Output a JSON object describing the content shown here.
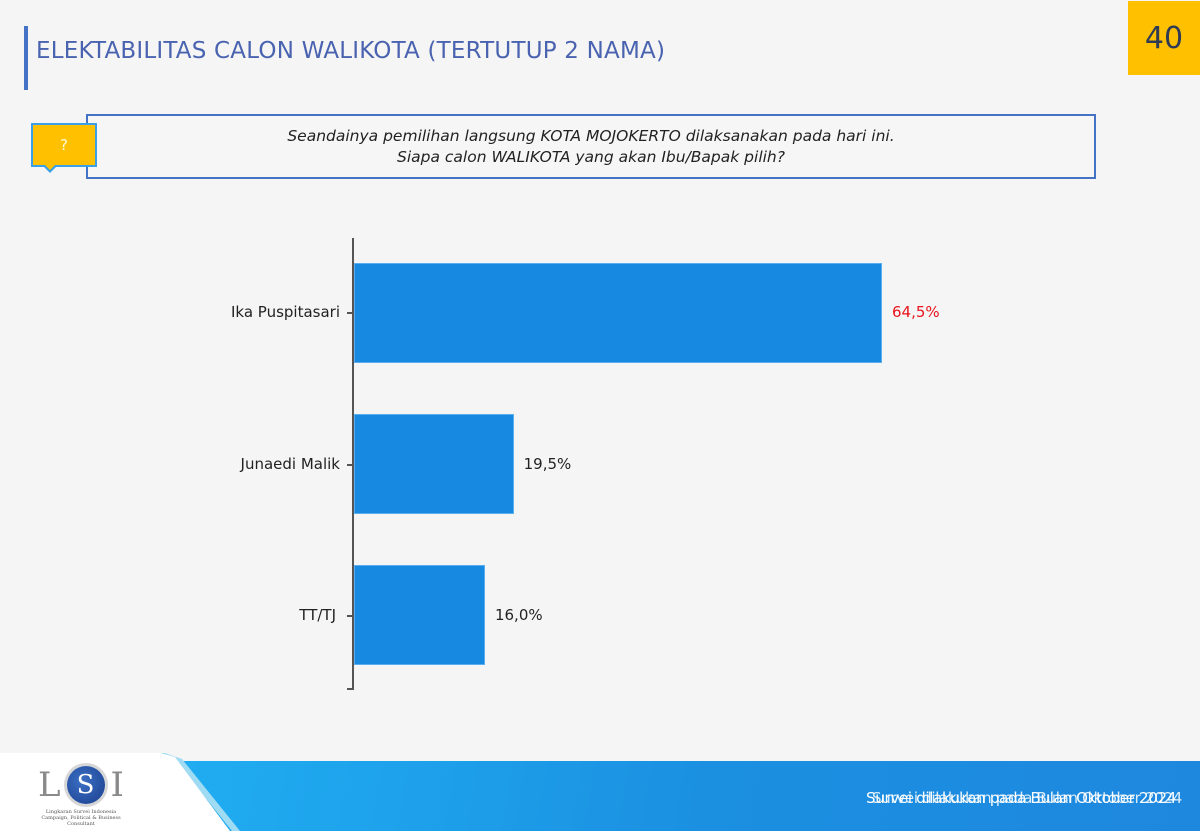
{
  "header": {
    "title": "ELEKTABILITAS CALON WALIKOTA (TERTUTUP 2 NAMA)",
    "page_number": "40"
  },
  "question": {
    "tag_symbol": "?",
    "line1": "Seandainya pemilihan langsung KOTA MOJOKERTO dilaksanakan pada hari ini.",
    "line2": "Siapa calon WALIKOTA yang akan Ibu/Bapak pilih?"
  },
  "colors": {
    "bar": "#1789e0",
    "highlight_value": "#e8141c",
    "accent_yellow": "#ffc000",
    "accent_blue": "#4472c4"
  },
  "chart_data": {
    "type": "bar",
    "orientation": "horizontal",
    "title": "ELEKTABILITAS CALON WALIKOTA (TERTUTUP 2 NAMA)",
    "xlabel": "",
    "ylabel": "",
    "categories": [
      "Ika Puspitasari",
      "Junaedi Malik",
      "TT/TJ"
    ],
    "values": [
      64.5,
      19.5,
      16.0
    ],
    "value_labels": [
      "64,5%",
      "19,5%",
      "16,0%"
    ],
    "unit": "%",
    "xlim": [
      0,
      100
    ],
    "grid": false,
    "legend": "none",
    "highlighted_category": "Ika Puspitasari"
  },
  "footer": {
    "logo_text": "LSI",
    "logo_subtitle": "Lingkaran Survei Indonesia",
    "logo_tagline": "Campaign, Political & Business Consultant",
    "note": "Survei dilakukan pada Bulan Oktober 2024"
  }
}
